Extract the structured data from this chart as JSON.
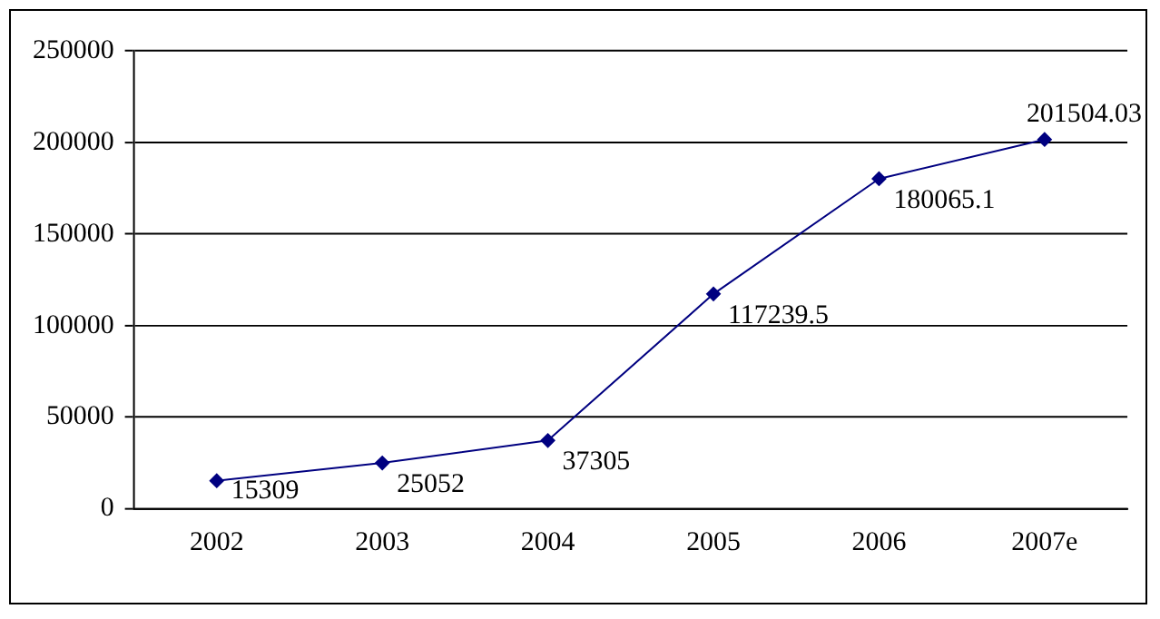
{
  "chart_data": {
    "type": "line",
    "categories": [
      "2002",
      "2003",
      "2004",
      "2005",
      "2006",
      "2007e"
    ],
    "series": [
      {
        "color": "#000080",
        "values": [
          15309,
          25052,
          37305,
          117239.5,
          180065.1,
          201504.03
        ]
      }
    ],
    "ylim": [
      0,
      250000
    ],
    "yticks": [
      0,
      50000,
      100000,
      150000,
      200000,
      250000
    ],
    "grid": "y",
    "legend": false,
    "marker": "diamond",
    "line_style": "solid",
    "data_labels": true
  }
}
